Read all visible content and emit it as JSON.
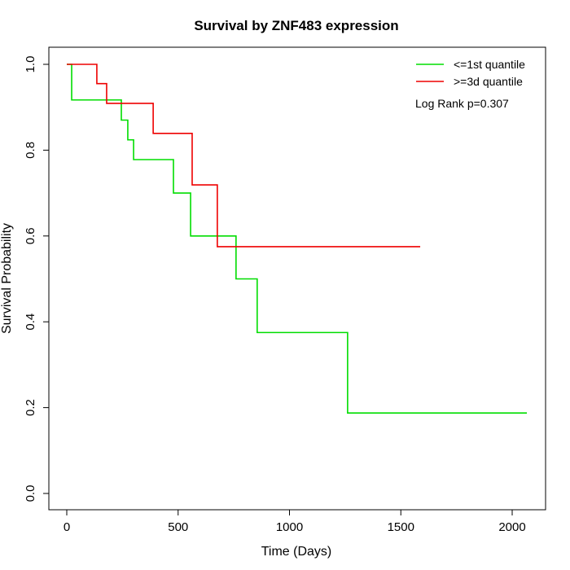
{
  "chart_data": {
    "type": "line",
    "subtype": "kaplan-meier step",
    "title": "Survival by ZNF483 expression",
    "xlabel": "Time (Days)",
    "ylabel": "Survival Probability",
    "xlim": [
      0,
      2100
    ],
    "ylim": [
      0,
      1
    ],
    "xticks": [
      0,
      500,
      1000,
      1500,
      2000
    ],
    "yticks": [
      0.0,
      0.2,
      0.4,
      0.6,
      0.8,
      1.0
    ],
    "ytick_labels": [
      "0.0",
      "0.2",
      "0.4",
      "0.6",
      "0.8",
      "1.0"
    ],
    "grid": false,
    "legend_position": "top-right",
    "annotation": "Log Rank p=0.307",
    "series": [
      {
        "name": "<=1st quantile",
        "color": "#00dd00",
        "x": [
          0,
          22,
          245,
          274,
          300,
          479,
          556,
          760,
          855,
          1261,
          2066
        ],
        "y": [
          1.0,
          0.917,
          0.87,
          0.824,
          0.778,
          0.7,
          0.6,
          0.5,
          0.375,
          0.1875,
          0.1875
        ]
      },
      {
        "name": ">=3d quantile",
        "color": "#ee0000",
        "x": [
          0,
          135,
          179,
          388,
          563,
          676,
          1587
        ],
        "y": [
          1.0,
          0.955,
          0.909,
          0.839,
          0.719,
          0.575,
          0.575
        ]
      }
    ]
  }
}
